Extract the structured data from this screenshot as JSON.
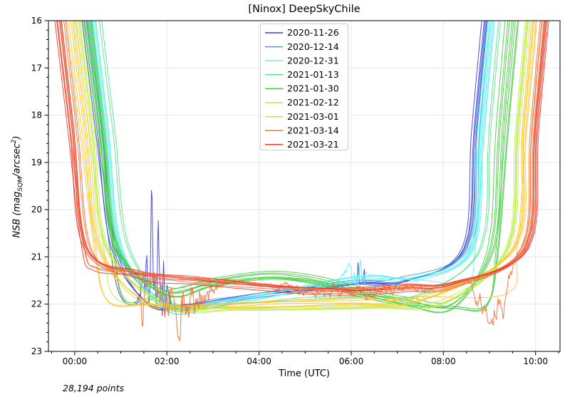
{
  "chart_data": {
    "type": "line",
    "title": "[Ninox] DeepSkyChile",
    "xlabel": "Time (UTC)",
    "ylabel": "NSB (mag_SQM/arcsec^2)",
    "ylabel_parts": {
      "pre": "NSB (mag",
      "sub": "SQM",
      "mid": "/arcsec",
      "sup": "2",
      "post": ")"
    },
    "annotation": "28,194 points",
    "n_points_total": 28194,
    "grid": true,
    "legend_position": "upper center",
    "x_axis": {
      "tick_labels": [
        "00:00",
        "02:00",
        "04:00",
        "06:00",
        "08:00",
        "10:00"
      ],
      "tick_hours": [
        0,
        2,
        4,
        6,
        8,
        10
      ],
      "minor_step_h": 0.5,
      "range_hours": [
        -0.57,
        10.53
      ]
    },
    "y_axis": {
      "tick_labels": [
        "16",
        "17",
        "18",
        "19",
        "20",
        "21",
        "22",
        "23"
      ],
      "ticks": [
        16,
        17,
        18,
        19,
        20,
        21,
        22,
        23
      ],
      "minor_step": 0.2,
      "range": [
        16,
        23
      ],
      "inverted": true
    },
    "series": [
      {
        "label": "2020-11-26",
        "color": "#3D3DD8",
        "nights": 4,
        "descent_start_utc": 0.26,
        "descent_end_utc": 1.04,
        "ascent_start_utc": 8.3,
        "ascent_end_utc": 8.85,
        "descent_spread_h": 0.16,
        "ascent_spread_h": 0.12,
        "plateau": [
          [
            1.04,
            21.85
          ],
          [
            1.6,
            21.95
          ],
          [
            2.4,
            22.0
          ],
          [
            3.4,
            21.85
          ],
          [
            4.5,
            21.7
          ],
          [
            5.5,
            21.6
          ],
          [
            6.3,
            21.5
          ],
          [
            7.2,
            21.48
          ],
          [
            8.3,
            21.5
          ]
        ],
        "noisy_night": {
          "night": 0,
          "segs": [
            {
              "t0": 1.25,
              "t1": 2.2,
              "amp": 0.5,
              "bias": -0.15
            }
          ],
          "spikes": [
            {
              "t": 1.67,
              "mag": 19.27,
              "w": 0.035
            },
            {
              "t": 1.81,
              "mag": 20.06,
              "w": 0.03
            },
            {
              "t": 1.56,
              "mag": 20.9,
              "w": 0.025
            },
            {
              "t": 1.93,
              "mag": 21.0,
              "w": 0.025
            },
            {
              "t": 6.15,
              "mag": 21.1,
              "w": 0.03
            },
            {
              "t": 6.28,
              "mag": 21.2,
              "w": 0.025
            }
          ]
        }
      },
      {
        "label": "2020-12-14",
        "color": "#3F9FDF",
        "nights": 3,
        "descent_start_utc": 0.33,
        "descent_end_utc": 1.1,
        "ascent_start_utc": 8.38,
        "ascent_end_utc": 8.92,
        "descent_spread_h": 0.1,
        "ascent_spread_h": 0.08,
        "plateau": [
          [
            1.1,
            21.9
          ],
          [
            2,
            22.0
          ],
          [
            3,
            21.95
          ],
          [
            4,
            21.8
          ],
          [
            5,
            21.7
          ],
          [
            6,
            21.55
          ],
          [
            7,
            21.48
          ],
          [
            8.38,
            21.5
          ]
        ]
      },
      {
        "label": "2020-12-31",
        "color": "#63F2F2",
        "nights": 6,
        "descent_start_utc": 0.42,
        "descent_end_utc": 1.2,
        "ascent_start_utc": 8.5,
        "ascent_end_utc": 9.0,
        "descent_spread_h": 0.12,
        "ascent_spread_h": 0.12,
        "plateau": [
          [
            1.2,
            22.0
          ],
          [
            2,
            22.08
          ],
          [
            3,
            22.0
          ],
          [
            4,
            21.85
          ],
          [
            5,
            21.65
          ],
          [
            5.8,
            21.5
          ],
          [
            6.5,
            21.42
          ],
          [
            7.5,
            21.45
          ],
          [
            8.5,
            21.5
          ]
        ],
        "noisy_night": {
          "night": 1,
          "segs": [
            {
              "t0": 5.7,
              "t1": 6.4,
              "amp": 0.22,
              "bias": -0.05
            }
          ],
          "spikes": [
            {
              "t": 5.95,
              "mag": 21.15,
              "w": 0.03
            },
            {
              "t": 6.2,
              "mag": 21.05,
              "w": 0.03
            }
          ]
        }
      },
      {
        "label": "2021-01-13",
        "color": "#4FE888",
        "nights": 2,
        "descent_start_utc": 0.58,
        "descent_end_utc": 1.4,
        "ascent_start_utc": 8.68,
        "ascent_end_utc": 9.18,
        "descent_spread_h": 0.05,
        "ascent_spread_h": 0.05,
        "plateau": [
          [
            1.4,
            21.95
          ],
          [
            2.2,
            22.08
          ],
          [
            3.5,
            22.05
          ],
          [
            5,
            21.95
          ],
          [
            6.5,
            21.88
          ],
          [
            7.5,
            21.85
          ],
          [
            8.68,
            21.9
          ]
        ]
      },
      {
        "label": "2021-01-30",
        "color": "#46CD41",
        "nights": 8,
        "descent_start_utc": 0.3,
        "descent_end_utc": 1.12,
        "ascent_start_utc": 8.95,
        "ascent_end_utc": 9.45,
        "descent_spread_h": 0.18,
        "ascent_spread_h": 0.3,
        "plateau_spread_mag": 0.28,
        "plateau": [
          [
            1.12,
            21.9
          ],
          [
            2,
            21.7
          ],
          [
            3,
            21.5
          ],
          [
            4.2,
            21.35
          ],
          [
            5.2,
            21.45
          ],
          [
            6.2,
            21.7
          ],
          [
            7.2,
            21.9
          ],
          [
            8.2,
            21.98
          ],
          [
            8.95,
            21.92
          ]
        ]
      },
      {
        "label": "2021-02-12",
        "color": "#BFEC4A",
        "nights": 5,
        "descent_start_utc": 0.1,
        "descent_end_utc": 0.9,
        "ascent_start_utc": 9.25,
        "ascent_end_utc": 9.78,
        "descent_spread_h": 0.12,
        "ascent_spread_h": 0.1,
        "plateau": [
          [
            0.9,
            21.85
          ],
          [
            2,
            22.0
          ],
          [
            3.5,
            22.08
          ],
          [
            5,
            22.08
          ],
          [
            6.5,
            22.02
          ],
          [
            8,
            21.95
          ],
          [
            9.25,
            21.9
          ]
        ]
      },
      {
        "label": "2021-03-01",
        "color": "#FDC62F",
        "nights": 6,
        "descent_start_utc": -0.05,
        "descent_end_utc": 0.72,
        "ascent_start_utc": 9.4,
        "ascent_end_utc": 9.92,
        "descent_spread_h": 0.2,
        "ascent_spread_h": 0.12,
        "plateau": [
          [
            0.72,
            21.9
          ],
          [
            1.6,
            22.0
          ],
          [
            3,
            22.05
          ],
          [
            4.5,
            22.0
          ],
          [
            6,
            21.95
          ],
          [
            7.5,
            21.88
          ],
          [
            9.4,
            21.82
          ]
        ]
      },
      {
        "label": "2021-03-14",
        "color": "#F2703A",
        "nights": 6,
        "descent_start_utc": -0.28,
        "descent_end_utc": 0.48,
        "ascent_start_utc": 9.58,
        "ascent_end_utc": 10.12,
        "descent_spread_h": 0.2,
        "ascent_spread_h": 0.1,
        "plateau": [
          [
            0.48,
            21.25
          ],
          [
            1.2,
            21.32
          ],
          [
            2.2,
            21.42
          ],
          [
            3.2,
            21.52
          ],
          [
            4.2,
            21.6
          ],
          [
            5.2,
            21.68
          ],
          [
            6.2,
            21.7
          ],
          [
            7.2,
            21.65
          ],
          [
            8.2,
            21.58
          ],
          [
            9.58,
            21.48
          ]
        ],
        "noisy_night": {
          "night": 0,
          "segs": [
            {
              "t0": 1.25,
              "t1": 3.3,
              "amp": 0.45,
              "bias": 0.45
            },
            {
              "t0": 3.3,
              "t1": 8.5,
              "amp": 0.12,
              "bias": 0.1
            },
            {
              "t0": 8.5,
              "t1": 9.6,
              "amp": 0.3,
              "bias": 0.75
            }
          ],
          "spikes": [
            {
              "t": 1.47,
              "mag": 22.62,
              "w": 0.06
            },
            {
              "t": 1.95,
              "mag": 22.3,
              "w": 0.05
            },
            {
              "t": 2.6,
              "mag": 22.25,
              "w": 0.05
            },
            {
              "t": 9.0,
              "mag": 22.42,
              "w": 0.08
            },
            {
              "t": 9.3,
              "mag": 22.35,
              "w": 0.06
            }
          ]
        }
      },
      {
        "label": "2021-03-21",
        "color": "#EC392E",
        "nights": 4,
        "descent_start_utc": -0.34,
        "descent_end_utc": 0.42,
        "ascent_start_utc": 9.68,
        "ascent_end_utc": 10.2,
        "descent_spread_h": 0.14,
        "ascent_spread_h": 0.1,
        "plateau": [
          [
            0.42,
            21.3
          ],
          [
            1.4,
            21.38
          ],
          [
            2.6,
            21.5
          ],
          [
            4,
            21.62
          ],
          [
            5.2,
            21.7
          ],
          [
            6.2,
            21.72
          ],
          [
            7.2,
            21.65
          ],
          [
            8.2,
            21.58
          ],
          [
            9.68,
            21.45
          ]
        ]
      }
    ]
  }
}
